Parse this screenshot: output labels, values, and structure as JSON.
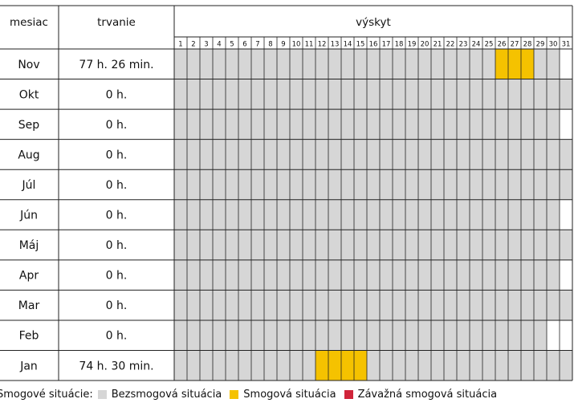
{
  "chart_data": {
    "type": "table",
    "columns": {
      "month": "mesiac",
      "duration": "trvanie",
      "occurrence": "výskyt"
    },
    "days": [
      1,
      2,
      3,
      4,
      5,
      6,
      7,
      8,
      9,
      10,
      11,
      12,
      13,
      14,
      15,
      16,
      17,
      18,
      19,
      20,
      21,
      22,
      23,
      24,
      25,
      26,
      27,
      28,
      29,
      30,
      31
    ],
    "rows": [
      {
        "month": "Nov",
        "duration": "77 h. 26 min.",
        "days_in_month": 30,
        "smog_days": [
          26,
          27,
          28
        ],
        "severe_days": []
      },
      {
        "month": "Okt",
        "duration": "0 h.",
        "days_in_month": 31,
        "smog_days": [],
        "severe_days": []
      },
      {
        "month": "Sep",
        "duration": "0 h.",
        "days_in_month": 30,
        "smog_days": [],
        "severe_days": []
      },
      {
        "month": "Aug",
        "duration": "0 h.",
        "days_in_month": 31,
        "smog_days": [],
        "severe_days": []
      },
      {
        "month": "Júl",
        "duration": "0 h.",
        "days_in_month": 31,
        "smog_days": [],
        "severe_days": []
      },
      {
        "month": "Jún",
        "duration": "0 h.",
        "days_in_month": 30,
        "smog_days": [],
        "severe_days": []
      },
      {
        "month": "Máj",
        "duration": "0 h.",
        "days_in_month": 31,
        "smog_days": [],
        "severe_days": []
      },
      {
        "month": "Apr",
        "duration": "0 h.",
        "days_in_month": 30,
        "smog_days": [],
        "severe_days": []
      },
      {
        "month": "Mar",
        "duration": "0 h.",
        "days_in_month": 31,
        "smog_days": [],
        "severe_days": []
      },
      {
        "month": "Feb",
        "duration": "0 h.",
        "days_in_month": 29,
        "smog_days": [],
        "severe_days": []
      },
      {
        "month": "Jan",
        "duration": "74 h. 30 min.",
        "days_in_month": 31,
        "smog_days": [
          12,
          13,
          14,
          15
        ],
        "severe_days": []
      }
    ]
  },
  "legend": {
    "label": "Smogové situácie:",
    "items": [
      {
        "name": "Bezsmogová situácia",
        "color": "#d6d6d6"
      },
      {
        "name": "Smogová situácia",
        "color": "#f5c200"
      },
      {
        "name": "Závažná smogová situácia",
        "color": "#d0243a"
      }
    ]
  },
  "colors": {
    "grid": "#222222",
    "none": "#d6d6d6",
    "smog": "#f5c200",
    "severe": "#d0243a"
  }
}
